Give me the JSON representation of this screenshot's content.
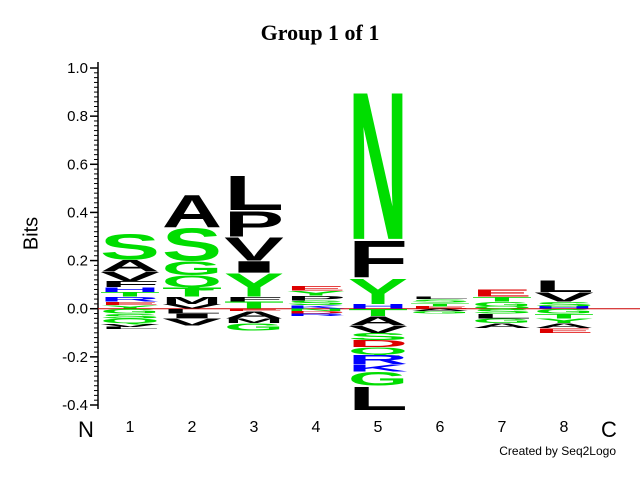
{
  "chart_data": {
    "type": "sequence-logo",
    "title": "Group 1 of 1",
    "ylabel": "Bits",
    "ylim": [
      -0.4,
      1.0
    ],
    "yticks": [
      -0.4,
      -0.2,
      0.0,
      0.2,
      0.4,
      0.6,
      0.8,
      1.0
    ],
    "ytick_labels": [
      "-0.4",
      "-0.2",
      "0.0",
      "0.2",
      "0.4",
      "0.6",
      "0.8",
      "1.0"
    ],
    "x_start_label": "N",
    "x_end_label": "C",
    "positions": [
      {
        "label": "1",
        "above": [
          {
            "letter": "Y",
            "bits": 0.015
          },
          {
            "letter": "E",
            "bits": 0.015
          },
          {
            "letter": "R",
            "bits": 0.02
          },
          {
            "letter": "T",
            "bits": 0.02
          },
          {
            "letter": "H",
            "bits": 0.02
          },
          {
            "letter": "F",
            "bits": 0.025
          },
          {
            "letter": "V",
            "bits": 0.04
          },
          {
            "letter": "A",
            "bits": 0.05
          },
          {
            "letter": "S",
            "bits": 0.11
          }
        ],
        "below": [
          {
            "letter": "G",
            "bits": 0.02
          },
          {
            "letter": "S",
            "bits": 0.02
          },
          {
            "letter": "Q",
            "bits": 0.02
          },
          {
            "letter": "V",
            "bits": 0.015
          },
          {
            "letter": "L",
            "bits": 0.01
          }
        ]
      },
      {
        "label": "2",
        "above": [
          {
            "letter": "V",
            "bits": 0.02
          },
          {
            "letter": "M",
            "bits": 0.03
          },
          {
            "letter": "T",
            "bits": 0.04
          },
          {
            "letter": "Q",
            "bits": 0.05
          },
          {
            "letter": "G",
            "bits": 0.06
          },
          {
            "letter": "S",
            "bits": 0.14
          },
          {
            "letter": "A",
            "bits": 0.14
          }
        ],
        "below": [
          {
            "letter": "L",
            "bits": 0.02
          },
          {
            "letter": "I",
            "bits": 0.02
          },
          {
            "letter": "V",
            "bits": 0.03
          }
        ]
      },
      {
        "label": "3",
        "above": [
          {
            "letter": "T",
            "bits": 0.03
          },
          {
            "letter": "F",
            "bits": 0.02
          },
          {
            "letter": "Y",
            "bits": 0.1
          },
          {
            "letter": "I",
            "bits": 0.05
          },
          {
            "letter": "V",
            "bits": 0.1
          },
          {
            "letter": "P",
            "bits": 0.11
          },
          {
            "letter": "L",
            "bits": 0.15
          }
        ],
        "below": [
          {
            "letter": "E",
            "bits": 0.01
          },
          {
            "letter": "A",
            "bits": 0.03
          },
          {
            "letter": "M",
            "bits": 0.02
          },
          {
            "letter": "G",
            "bits": 0.03
          }
        ]
      },
      {
        "label": "4",
        "above": [
          {
            "letter": "K",
            "bits": 0.015
          },
          {
            "letter": "S",
            "bits": 0.02
          },
          {
            "letter": "P",
            "bits": 0.02
          },
          {
            "letter": "Y",
            "bits": 0.02
          },
          {
            "letter": "E",
            "bits": 0.02
          }
        ],
        "below": [
          {
            "letter": "N",
            "bits": 0.01
          },
          {
            "letter": "D",
            "bits": 0.01
          },
          {
            "letter": "R",
            "bits": 0.01
          }
        ]
      },
      {
        "label": "5",
        "above": [
          {
            "letter": "H",
            "bits": 0.02
          },
          {
            "letter": "Y",
            "bits": 0.11
          },
          {
            "letter": "F",
            "bits": 0.16
          },
          {
            "letter": "N",
            "bits": 0.64
          }
        ],
        "below": [
          {
            "letter": "T",
            "bits": 0.03
          },
          {
            "letter": "A",
            "bits": 0.04
          },
          {
            "letter": "V",
            "bits": 0.03
          },
          {
            "letter": "S",
            "bits": 0.03
          },
          {
            "letter": "D",
            "bits": 0.03
          },
          {
            "letter": "Q",
            "bits": 0.03
          },
          {
            "letter": "R",
            "bits": 0.04
          },
          {
            "letter": "K",
            "bits": 0.03
          },
          {
            "letter": "G",
            "bits": 0.06
          },
          {
            "letter": "L",
            "bits": 0.1
          }
        ]
      },
      {
        "label": "6",
        "above": [
          {
            "letter": "E",
            "bits": 0.01
          },
          {
            "letter": "T",
            "bits": 0.015
          },
          {
            "letter": "S",
            "bits": 0.015
          },
          {
            "letter": "L",
            "bits": 0.01
          }
        ],
        "below": [
          {
            "letter": "A",
            "bits": 0.01
          },
          {
            "letter": "G",
            "bits": 0.01
          }
        ]
      },
      {
        "label": "7",
        "above": [
          {
            "letter": "Q",
            "bits": 0.01
          },
          {
            "letter": "G",
            "bits": 0.02
          },
          {
            "letter": "T",
            "bits": 0.02
          },
          {
            "letter": "E",
            "bits": 0.03
          }
        ],
        "below": [
          {
            "letter": "S",
            "bits": 0.02
          },
          {
            "letter": "L",
            "bits": 0.02
          },
          {
            "letter": "G",
            "bits": 0.02
          },
          {
            "letter": "A",
            "bits": 0.02
          }
        ]
      },
      {
        "label": "8",
        "above": [
          {
            "letter": "H",
            "bits": 0.01
          },
          {
            "letter": "S",
            "bits": 0.02
          },
          {
            "letter": "V",
            "bits": 0.04
          },
          {
            "letter": "L",
            "bits": 0.05
          }
        ],
        "below": [
          {
            "letter": "G",
            "bits": 0.02
          },
          {
            "letter": "T",
            "bits": 0.02
          },
          {
            "letter": "Y",
            "bits": 0.02
          },
          {
            "letter": "A",
            "bits": 0.02
          },
          {
            "letter": "E",
            "bits": 0.02
          }
        ]
      }
    ],
    "letter_colors": {
      "hydrophobic": "#000000",
      "polar": "#00DD00",
      "positive": "#0000FF",
      "negative": "#DD0000",
      "members": {
        "A": "hydrophobic",
        "V": "hydrophobic",
        "L": "hydrophobic",
        "I": "hydrophobic",
        "M": "hydrophobic",
        "F": "hydrophobic",
        "W": "hydrophobic",
        "P": "hydrophobic",
        "S": "polar",
        "T": "polar",
        "Y": "polar",
        "N": "polar",
        "Q": "polar",
        "G": "polar",
        "C": "polar",
        "H": "positive",
        "K": "positive",
        "R": "positive",
        "D": "negative",
        "E": "negative"
      }
    },
    "zero_line_color": "#CC0000",
    "grid": false,
    "legend": "none"
  },
  "footer": {
    "credit": "Created by Seq2Logo"
  }
}
